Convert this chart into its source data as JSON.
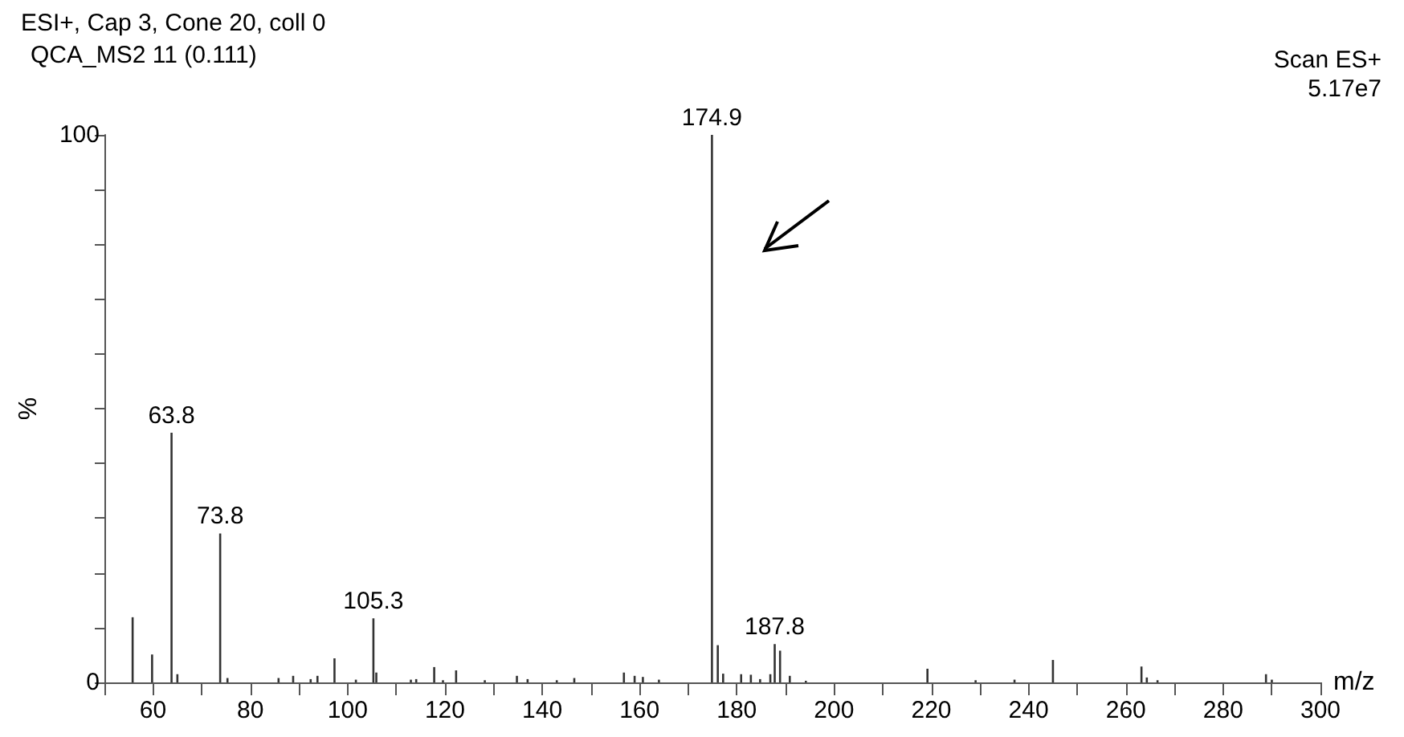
{
  "chart_data": {
    "type": "bar",
    "title": "ESI+, Cap 3, Cone 20, coll 0",
    "subtitle": "QCA_MS2 11 (0.111)",
    "xlabel": "m/z",
    "ylabel": "%",
    "annotations": [
      "Scan ES+",
      "5.17e7",
      {
        "text": "174.9",
        "x": 174.9,
        "y": 100
      },
      {
        "text": "63.8",
        "x": 63.8,
        "y": 45.6
      },
      {
        "text": "73.8",
        "x": 73.8,
        "y": 27.2
      },
      {
        "text": "105.3",
        "x": 105.3,
        "y": 11.7
      },
      {
        "text": "187.8",
        "x": 187.8,
        "y": 7.0
      }
    ],
    "x": [
      55.8,
      59.8,
      63.8,
      65,
      73.8,
      75.3,
      85.8,
      88.8,
      92.4,
      93.8,
      97.3,
      101.7,
      105.3,
      105.9,
      113,
      114.1,
      117.8,
      119.6,
      122.3,
      128.2,
      134.8,
      137,
      143,
      146.6,
      156.8,
      159,
      160.7,
      164,
      174.9,
      176.1,
      177.2,
      180.9,
      182.9,
      184.8,
      186.9,
      187.8,
      188.9,
      190.9,
      194.2,
      219.2,
      229.1,
      237.1,
      245,
      263.2,
      264.3,
      266.5,
      288.8,
      290
    ],
    "values": [
      11.9,
      5.1,
      45.6,
      1.5,
      27.2,
      0.8,
      0.8,
      1.2,
      0.6,
      1.2,
      4.4,
      0.5,
      11.7,
      1.8,
      0.5,
      0.6,
      2.8,
      0.4,
      2.2,
      0.4,
      1.2,
      0.6,
      0.4,
      0.8,
      1.8,
      1.2,
      1.0,
      0.5,
      100,
      6.8,
      1.6,
      1.5,
      1.4,
      0.6,
      1.5,
      7.0,
      5.8,
      1.2,
      0.3,
      2.5,
      0.4,
      0.5,
      4.1,
      2.9,
      0.9,
      0.4,
      1.5,
      0.5
    ],
    "color": "#333333",
    "xlim": [
      50,
      300
    ],
    "xticks": [
      {
        "value": 50,
        "label": null
      },
      60,
      {
        "value": 70,
        "label": null
      },
      80,
      {
        "value": 90,
        "label": null
      },
      100,
      {
        "value": 110,
        "label": null
      },
      120,
      {
        "value": 130,
        "label": null
      },
      140,
      {
        "value": 150,
        "label": null
      },
      160,
      {
        "value": 170,
        "label": null
      },
      180,
      {
        "value": 190,
        "label": null
      },
      200,
      {
        "value": 210,
        "label": null
      },
      220,
      {
        "value": 230,
        "label": null
      },
      240,
      {
        "value": 250,
        "label": null
      },
      260,
      {
        "value": 270,
        "label": null
      },
      280,
      {
        "value": 290,
        "label": null
      },
      300
    ],
    "ylim": [
      0,
      100
    ],
    "yticks": [
      0,
      {
        "value": 10,
        "label": null
      },
      {
        "value": 20,
        "label": null
      },
      {
        "value": 30,
        "label": null
      },
      {
        "value": 40,
        "label": null
      },
      {
        "value": 50,
        "label": null
      },
      {
        "value": 60,
        "label": null
      },
      {
        "value": 70,
        "label": null
      },
      {
        "value": 80,
        "label": null
      },
      {
        "value": 90,
        "label": null
      },
      100
    ],
    "tick_labels": true
  }
}
